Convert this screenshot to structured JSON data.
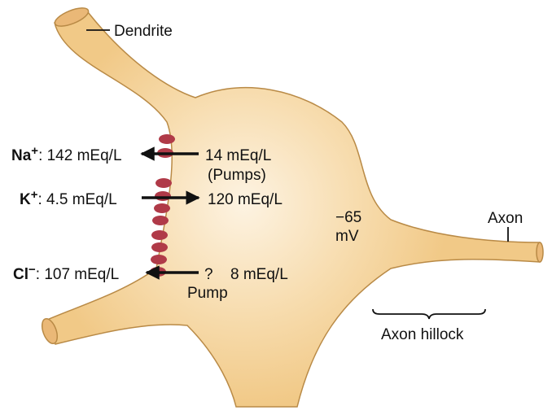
{
  "labels": {
    "dendrite": "Dendrite",
    "axon": "Axon",
    "axon_hillock": "Axon hillock",
    "potential_value": "−65",
    "potential_unit": "mV"
  },
  "ions": {
    "na": {
      "symbol": "Na",
      "charge": "+",
      "outside": ": 142 mEq/L",
      "inside": "14 mEq/L",
      "note": "(Pumps)"
    },
    "k": {
      "symbol": "K",
      "charge": "+",
      "outside": ": 4.5 mEq/L",
      "inside": "120 mEq/L"
    },
    "cl": {
      "symbol": "Cl",
      "charge": "−",
      "outside": ": 107 mEq/L",
      "question": "?",
      "inside": "8 mEq/L",
      "note": "Pump"
    }
  },
  "colors": {
    "cell_fill": "#f1c987",
    "cell_center": "#fdf3e2",
    "cell_outline": "#b98a46",
    "channel": "#b03a48",
    "text": "#111111"
  }
}
